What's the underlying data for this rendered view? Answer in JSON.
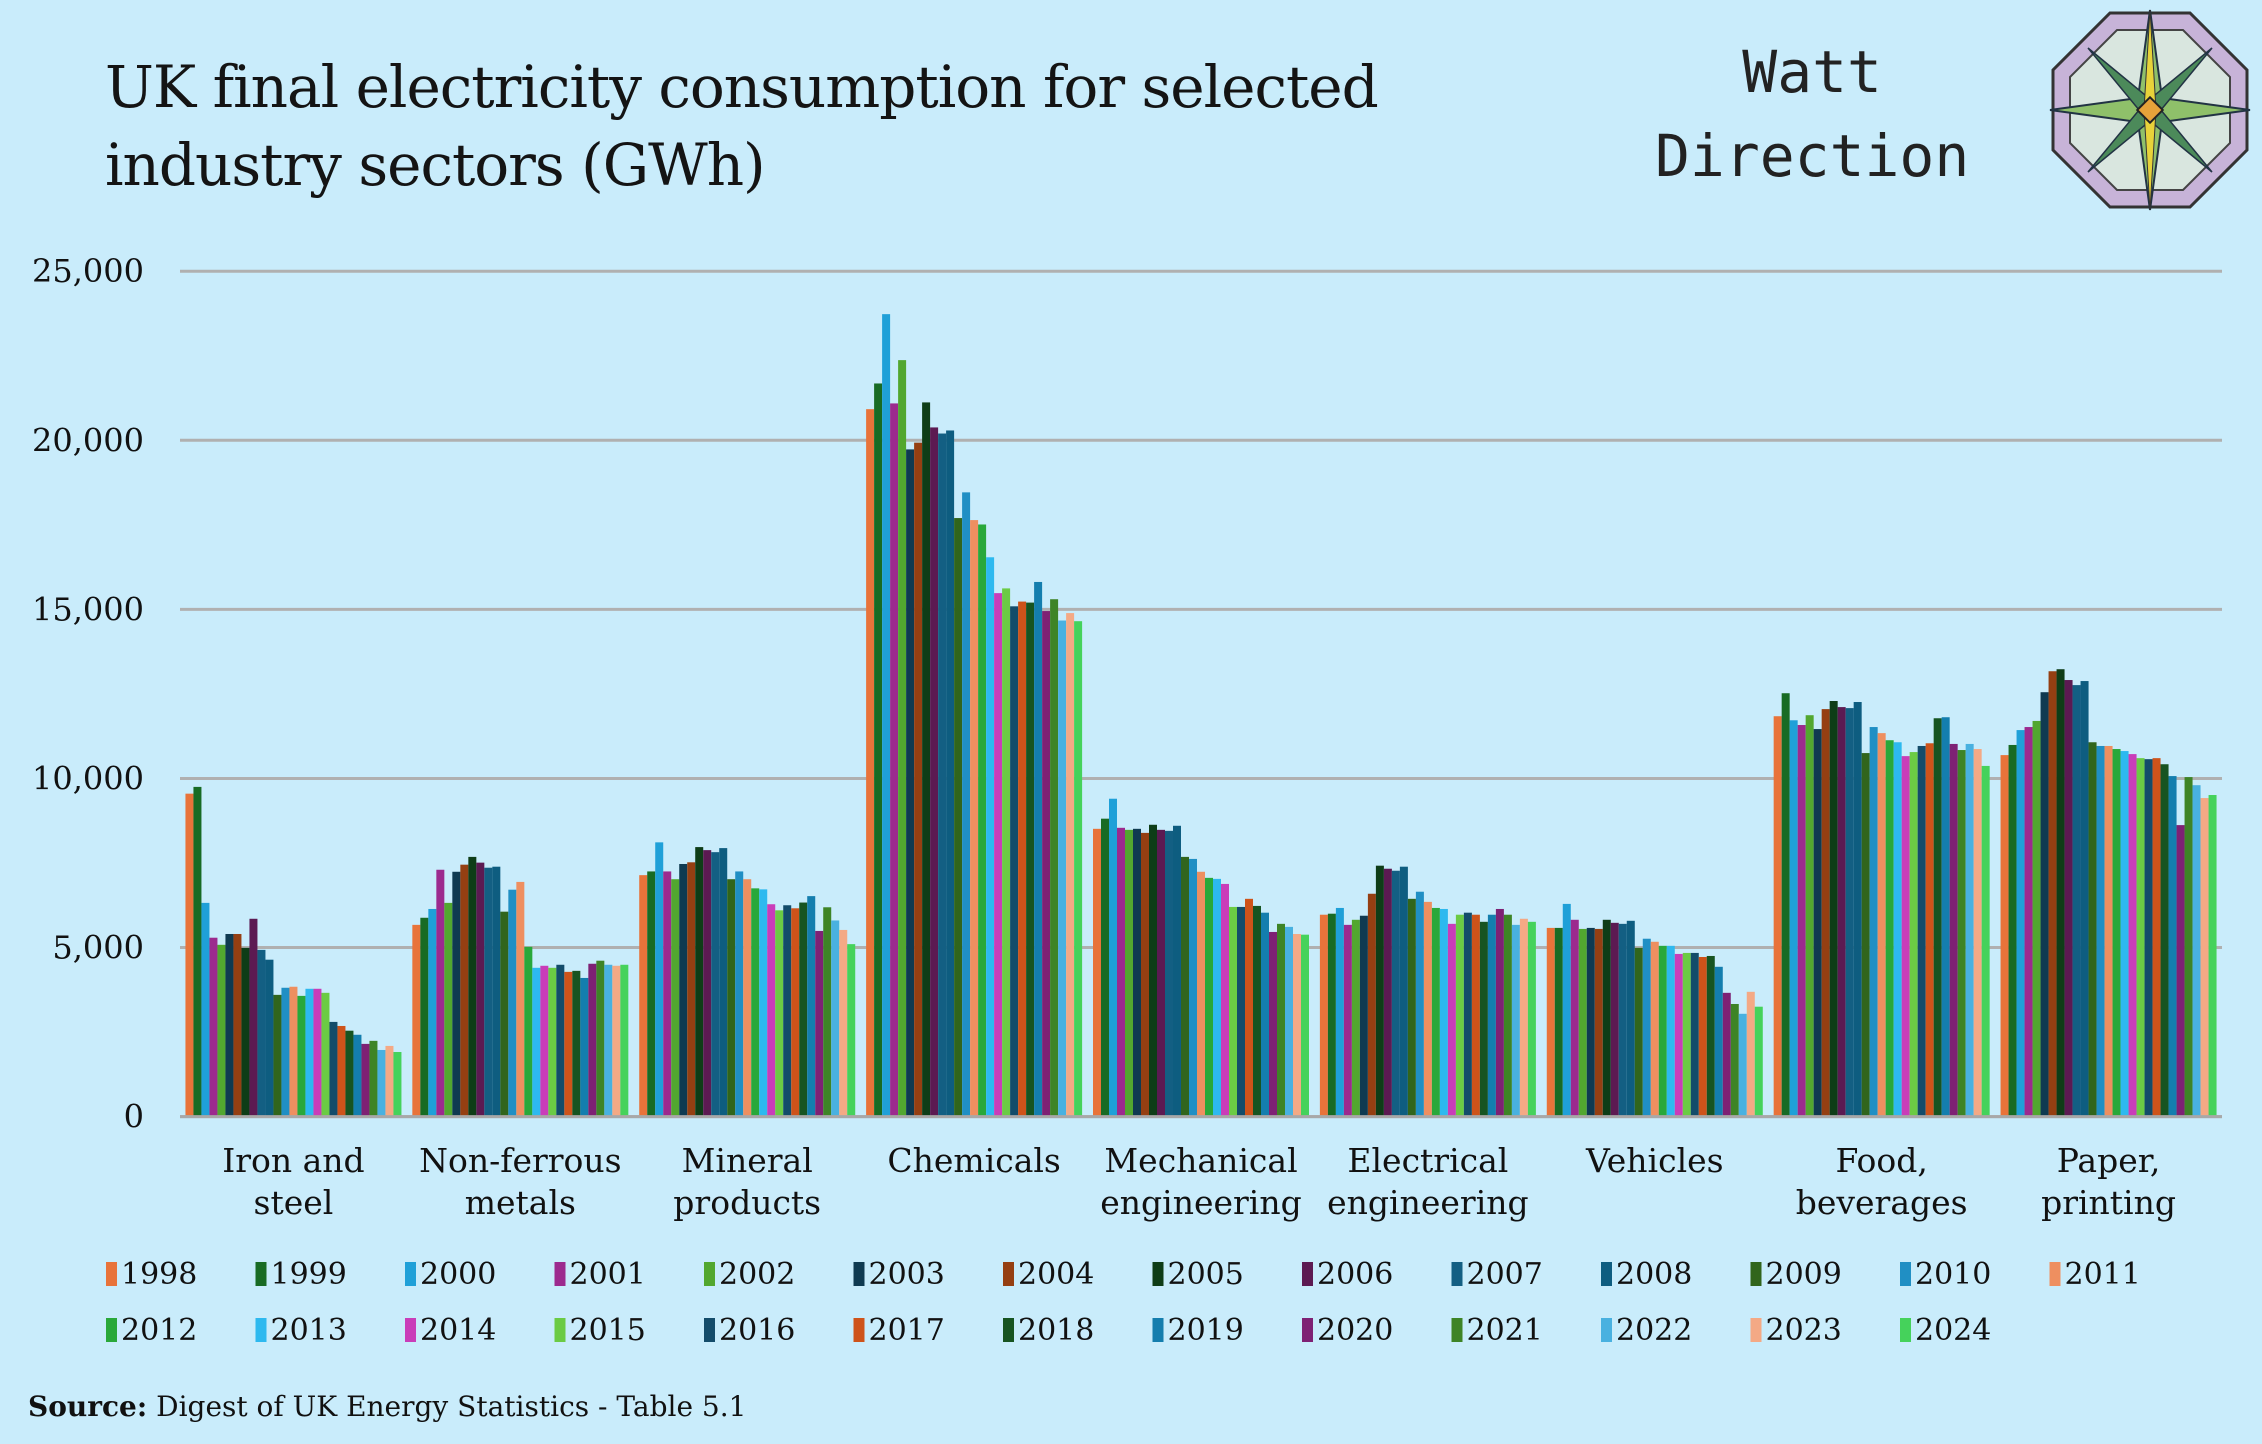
{
  "title_line1": "UK final electricity consumption for selected",
  "title_line2": "industry sectors (GWh)",
  "logo": {
    "line1": "Watt",
    "line2": "Direction"
  },
  "source_label": "Source:",
  "source_text": "Digest of UK Energy Statistics - Table 5.1",
  "chart_data": {
    "type": "bar",
    "title": "UK final electricity consumption for selected industry sectors (GWh)",
    "xlabel": "",
    "ylabel": "",
    "ylim": [
      0,
      25000
    ],
    "yticks": [
      0,
      5000,
      10000,
      15000,
      20000,
      25000
    ],
    "ytick_labels": [
      "0",
      "5,000",
      "10,000",
      "15,000",
      "20,000",
      "25,000"
    ],
    "grid": true,
    "legend_position": "bottom",
    "categories": [
      [
        "Iron and",
        "steel"
      ],
      [
        "Non-ferrous",
        "metals"
      ],
      [
        "Mineral",
        "products"
      ],
      [
        "Chemicals",
        ""
      ],
      [
        "Mechanical",
        "engineering"
      ],
      [
        "Electrical",
        "engineering"
      ],
      [
        "Vehicles",
        ""
      ],
      [
        "Food,",
        "beverages"
      ],
      [
        "Paper,",
        "printing"
      ]
    ],
    "series": [
      {
        "name": "1998",
        "color": "#E8733A",
        "values": [
          9550,
          5670,
          7140,
          20920,
          8510,
          5970,
          5580,
          11840,
          10690
        ]
      },
      {
        "name": "1999",
        "color": "#186B24",
        "values": [
          9750,
          5880,
          7250,
          21680,
          8810,
          6000,
          5580,
          12520,
          10990
        ]
      },
      {
        "name": "2000",
        "color": "#1FA0D8",
        "values": [
          6320,
          6140,
          8110,
          23730,
          9400,
          6170,
          6290,
          11720,
          11430
        ]
      },
      {
        "name": "2001",
        "color": "#9C2A8E",
        "values": [
          5290,
          7300,
          7250,
          21090,
          8540,
          5670,
          5820,
          11580,
          11520
        ]
      },
      {
        "name": "2002",
        "color": "#52A72F",
        "values": [
          5080,
          6320,
          7020,
          22370,
          8480,
          5820,
          5550,
          11870,
          11700
        ]
      },
      {
        "name": "2003",
        "color": "#0F3A51",
        "values": [
          5400,
          7240,
          7470,
          19730,
          8510,
          5940,
          5580,
          11460,
          12550
        ]
      },
      {
        "name": "2004",
        "color": "#953F12",
        "values": [
          5400,
          7450,
          7520,
          19930,
          8390,
          6590,
          5550,
          12050,
          13170
        ]
      },
      {
        "name": "2005",
        "color": "#0E3D17",
        "values": [
          4990,
          7680,
          7970,
          21120,
          8630,
          7420,
          5820,
          12290,
          13230
        ]
      },
      {
        "name": "2006",
        "color": "#5C1A52",
        "values": [
          5850,
          7510,
          7880,
          20380,
          8480,
          7330,
          5730,
          12110,
          12910
        ]
      },
      {
        "name": "2007",
        "color": "#135F83",
        "values": [
          4930,
          7360,
          7820,
          20200,
          8450,
          7270,
          5700,
          12080,
          12760
        ]
      },
      {
        "name": "2008",
        "color": "#0E5D80",
        "values": [
          4640,
          7390,
          7940,
          20290,
          8600,
          7390,
          5790,
          12260,
          12880
        ]
      },
      {
        "name": "2009",
        "color": "#31651C",
        "values": [
          3600,
          6060,
          7020,
          17700,
          7680,
          6440,
          4990,
          10750,
          11070
        ]
      },
      {
        "name": "2010",
        "color": "#208FC4",
        "values": [
          3810,
          6710,
          7250,
          18460,
          7620,
          6650,
          5260,
          11520,
          10960
        ]
      },
      {
        "name": "2011",
        "color": "#EE8F60",
        "values": [
          3840,
          6940,
          7020,
          17640,
          7240,
          6350,
          5170,
          11340,
          10960
        ]
      },
      {
        "name": "2012",
        "color": "#29A83A",
        "values": [
          3570,
          5020,
          6750,
          17510,
          7060,
          6170,
          5050,
          11130,
          10870
        ]
      },
      {
        "name": "2013",
        "color": "#2DB9EF",
        "values": [
          3780,
          4400,
          6720,
          16540,
          7030,
          6140,
          5050,
          11070,
          10810
        ]
      },
      {
        "name": "2014",
        "color": "#C93DB9",
        "values": [
          3780,
          4460,
          6280,
          15480,
          6880,
          5700,
          4810,
          10660,
          10720
        ]
      },
      {
        "name": "2015",
        "color": "#6BCB44",
        "values": [
          3660,
          4400,
          6100,
          15620,
          6200,
          5970,
          4840,
          10780,
          10600
        ]
      },
      {
        "name": "2016",
        "color": "#134C6A",
        "values": [
          2800,
          4490,
          6250,
          15090,
          6200,
          6030,
          4840,
          10960,
          10570
        ]
      },
      {
        "name": "2017",
        "color": "#CE531A",
        "values": [
          2680,
          4280,
          6160,
          15230,
          6440,
          5970,
          4720,
          11040,
          10600
        ]
      },
      {
        "name": "2018",
        "color": "#175421",
        "values": [
          2540,
          4310,
          6330,
          15200,
          6230,
          5760,
          4750,
          11780,
          10420
        ]
      },
      {
        "name": "2019",
        "color": "#147EAE",
        "values": [
          2420,
          4100,
          6520,
          15810,
          6030,
          5970,
          4430,
          11810,
          10070
        ]
      },
      {
        "name": "2020",
        "color": "#7E2174",
        "values": [
          2150,
          4520,
          5490,
          14950,
          5460,
          6140,
          3660,
          11020,
          8620
        ]
      },
      {
        "name": "2021",
        "color": "#3E8426",
        "values": [
          2240,
          4610,
          6190,
          15300,
          5700,
          5970,
          3330,
          10840,
          10040
        ]
      },
      {
        "name": "2022",
        "color": "#49B1E0",
        "values": [
          1970,
          4490,
          5800,
          14670,
          5610,
          5670,
          3040,
          11020,
          9800
        ]
      },
      {
        "name": "2023",
        "color": "#F4A985",
        "values": [
          2090,
          4460,
          5520,
          14890,
          5400,
          5850,
          3690,
          10870,
          9420
        ]
      },
      {
        "name": "2024",
        "color": "#45D25B",
        "values": [
          1910,
          4490,
          5100,
          14650,
          5380,
          5760,
          3250,
          10370,
          9510
        ]
      }
    ]
  }
}
